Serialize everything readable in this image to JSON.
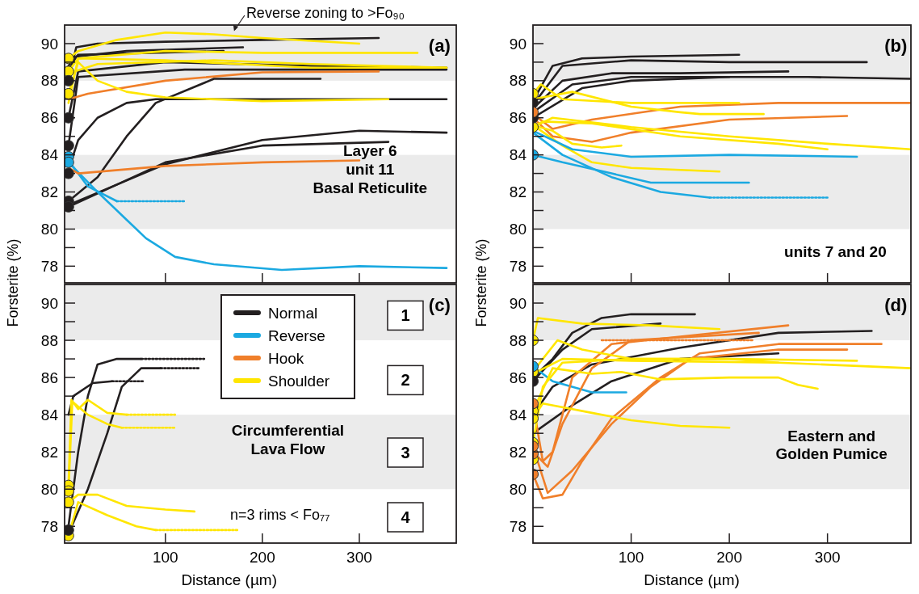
{
  "chart_data": [
    {
      "type": "line",
      "ylabel": "Forsterite (%)",
      "xlim": [
        -4,
        400
      ],
      "ylim": [
        77.1,
        91
      ],
      "xticks": [
        100,
        200,
        300
      ],
      "yticks": [
        78,
        {
          "value": 79,
          "label": null
        },
        80,
        {
          "value": 81,
          "label": null
        },
        82,
        {
          "value": 83,
          "label": null
        },
        84,
        {
          "value": 85,
          "label": null
        },
        86,
        {
          "value": 87,
          "label": null
        },
        88,
        {
          "value": 89,
          "label": null
        },
        90
      ],
      "tick_labels": "y",
      "bands": [
        {
          "axis": "y",
          "from": 88,
          "to": 91,
          "color": "#ebebeb"
        },
        {
          "axis": "y",
          "from": 80,
          "to": 84,
          "color": "#ebebeb"
        }
      ],
      "annotations": [
        "(a)",
        "Layer 6\nunit 11\nBasal Reticulite",
        {
          "text": "Reverse zoning to >Fo₉₀",
          "x": 170,
          "y": 90.5
        }
      ],
      "series": [
        {
          "color": "#231f20",
          "x": [
            0,
            8,
            30,
            100,
            200,
            320
          ],
          "values": [
            88,
            89.8,
            90,
            90.1,
            90.2,
            90.3
          ]
        },
        {
          "color": "#231f20",
          "x": [
            0,
            8,
            60,
            180
          ],
          "values": [
            88.5,
            89.3,
            89.6,
            89.8
          ]
        },
        {
          "color": "#231f20",
          "x": [
            0,
            10,
            160
          ],
          "values": [
            88.8,
            89.4,
            89.6
          ]
        },
        {
          "color": "#231f20",
          "x": [
            0,
            10,
            100,
            250,
            390
          ],
          "values": [
            86,
            88.5,
            89,
            88.8,
            88.7
          ]
        },
        {
          "color": "#231f20",
          "x": [
            0,
            10,
            120,
            390
          ],
          "values": [
            84.5,
            88.2,
            88.6,
            88.6
          ]
        },
        {
          "color": "#231f20",
          "x": [
            0,
            30,
            60,
            90,
            150,
            260
          ],
          "values": [
            81.5,
            82.8,
            85,
            86.8,
            88.1,
            88.1
          ]
        },
        {
          "color": "#231f20",
          "x": [
            0,
            10,
            30,
            60,
            90,
            390
          ],
          "values": [
            83.2,
            84.8,
            86,
            86.8,
            87,
            87
          ]
        },
        {
          "color": "#231f20",
          "x": [
            0,
            100,
            200,
            300,
            390
          ],
          "values": [
            81.3,
            83.5,
            84.8,
            85.3,
            85.2
          ]
        },
        {
          "color": "#231f20",
          "x": [
            0,
            100,
            200,
            330
          ],
          "values": [
            81.2,
            83.6,
            84.5,
            84.7
          ]
        },
        {
          "color": "#1ba9e1",
          "x": [
            0,
            20,
            50
          ],
          "values": [
            83.7,
            82.3,
            81.5
          ]
        },
        {
          "color": "#1ba9e1",
          "line_style": "dotted",
          "x": [
            50,
            120
          ],
          "values": [
            81.5,
            81.5
          ]
        },
        {
          "color": "#1ba9e1",
          "x": [
            0,
            30,
            60,
            80,
            110,
            150,
            220,
            300,
            390
          ],
          "values": [
            83.6,
            82,
            80.5,
            79.5,
            78.5,
            78.1,
            77.8,
            78,
            77.9
          ]
        },
        {
          "color": "#f07f2a",
          "x": [
            0,
            20,
            100,
            200,
            320
          ],
          "values": [
            87,
            87.3,
            88,
            88.45,
            88.5
          ]
        },
        {
          "color": "#f07f2a",
          "x": [
            0,
            10,
            100,
            200,
            300
          ],
          "values": [
            83.3,
            83,
            83.4,
            83.6,
            83.7
          ]
        },
        {
          "color": "#ffe600",
          "x": [
            0,
            10,
            50,
            100,
            150,
            200,
            300
          ],
          "values": [
            89.2,
            89.6,
            90.2,
            90.6,
            90.5,
            90.3,
            90
          ]
        },
        {
          "color": "#ffe600",
          "x": [
            0,
            10,
            100,
            200,
            360
          ],
          "values": [
            88.5,
            89.2,
            89.6,
            89.5,
            89.5
          ]
        },
        {
          "color": "#ffe600",
          "x": [
            0,
            30,
            150,
            250,
            390
          ],
          "values": [
            88.4,
            88.9,
            89.1,
            88.9,
            88.7
          ]
        },
        {
          "color": "#ffe600",
          "x": [
            0,
            10,
            30,
            60,
            100,
            200,
            330
          ],
          "values": [
            87.3,
            89,
            88,
            87.4,
            87.1,
            86.9,
            87
          ]
        },
        {
          "color": "#ffe600",
          "x": [
            0,
            10,
            100,
            250,
            390
          ],
          "values": [
            86.8,
            89.2,
            89.1,
            88.7,
            88.7
          ]
        },
        {
          "type": "scatter",
          "marker": "circle",
          "x": [
            0,
            0,
            0,
            0,
            0,
            0,
            0,
            0,
            0,
            0,
            0
          ],
          "values": [
            89.2,
            88.5,
            87.3,
            88,
            86,
            84.5,
            83,
            81.5,
            81.2,
            83.9,
            83.6
          ],
          "colors": [
            "#ffe600",
            "#ffe600",
            "#ffe600",
            "#231f20",
            "#231f20",
            "#231f20",
            "#231f20",
            "#231f20",
            "#231f20",
            "#1ba9e1",
            "#1ba9e1"
          ]
        }
      ]
    },
    {
      "type": "line",
      "ylabel": "Forsterite (%)",
      "xlim": [
        0,
        385
      ],
      "ylim": [
        77.1,
        91
      ],
      "xticks": [
        100,
        200,
        300
      ],
      "yticks": [
        78,
        {
          "value": 79,
          "label": null
        },
        80,
        {
          "value": 81,
          "label": null
        },
        82,
        {
          "value": 83,
          "label": null
        },
        84,
        {
          "value": 85,
          "label": null
        },
        86,
        {
          "value": 87,
          "label": null
        },
        88,
        {
          "value": 89,
          "label": null
        },
        90
      ],
      "tick_labels": "y",
      "bands": [
        {
          "axis": "y",
          "from": 88,
          "to": 91,
          "color": "#ebebeb"
        },
        {
          "axis": "y",
          "from": 80,
          "to": 84,
          "color": "#ebebeb"
        }
      ],
      "annotations": [
        "(b)",
        "units 7 and 20"
      ],
      "series": [
        {
          "color": "#231f20",
          "x": [
            0,
            20,
            50,
            100,
            210
          ],
          "values": [
            86.9,
            88.8,
            89.2,
            89.3,
            89.4
          ]
        },
        {
          "color": "#231f20",
          "x": [
            0,
            30,
            100,
            200,
            340
          ],
          "values": [
            86.7,
            88.8,
            89.1,
            89,
            89
          ]
        },
        {
          "color": "#231f20",
          "x": [
            0,
            30,
            80,
            150,
            260
          ],
          "values": [
            86.5,
            88,
            88.4,
            88.4,
            88.5
          ]
        },
        {
          "color": "#231f20",
          "x": [
            0,
            40,
            100,
            280,
            385
          ],
          "values": [
            86.3,
            87.8,
            88.2,
            88.2,
            88.1
          ]
        },
        {
          "color": "#231f20",
          "x": [
            0,
            50,
            100,
            200
          ],
          "values": [
            86,
            87.6,
            88,
            88.2
          ]
        },
        {
          "color": "#f07f2a",
          "x": [
            0,
            20,
            60,
            150,
            250,
            385
          ],
          "values": [
            86.2,
            85.4,
            85.9,
            86.6,
            86.8,
            86.8
          ]
        },
        {
          "color": "#f07f2a",
          "x": [
            0,
            20,
            60,
            100,
            200,
            320
          ],
          "values": [
            86,
            85,
            84.7,
            85.2,
            85.9,
            86.1
          ]
        },
        {
          "color": "#ffe600",
          "x": [
            0,
            8,
            30,
            100,
            210
          ],
          "values": [
            87.3,
            87.8,
            87,
            86.8,
            86.8
          ]
        },
        {
          "color": "#ffe600",
          "x": [
            0,
            40,
            100,
            150,
            170,
            235
          ],
          "values": [
            87,
            87.4,
            86.6,
            86.3,
            86.2,
            86.2
          ]
        },
        {
          "color": "#ffe600",
          "x": [
            0,
            20,
            100,
            200,
            300,
            385
          ],
          "values": [
            85.5,
            86,
            85.5,
            85,
            84.6,
            84.3
          ]
        },
        {
          "color": "#ffe600",
          "x": [
            0,
            10,
            60,
            150,
            250,
            300
          ],
          "values": [
            85.5,
            85.8,
            85.7,
            85,
            84.6,
            84.3
          ]
        },
        {
          "color": "#ffe600",
          "x": [
            0,
            20,
            40,
            70,
            90
          ],
          "values": [
            85.6,
            85.3,
            84.6,
            84.4,
            84.5
          ]
        },
        {
          "color": "#ffe600",
          "x": [
            0,
            30,
            60,
            100,
            190
          ],
          "values": [
            85.6,
            84.5,
            83.6,
            83.3,
            83.1
          ]
        },
        {
          "color": "#1ba9e1",
          "x": [
            0,
            30,
            80,
            120,
            220
          ],
          "values": [
            84,
            83.6,
            83,
            82.5,
            82.5
          ]
        },
        {
          "color": "#1ba9e1",
          "x": [
            0,
            40,
            100,
            200,
            330
          ],
          "values": [
            85.3,
            84.3,
            83.9,
            84,
            83.9
          ]
        },
        {
          "color": "#1ba9e1",
          "x": [
            0,
            30,
            80,
            130,
            180
          ],
          "values": [
            85.2,
            84,
            82.8,
            82,
            81.7
          ]
        },
        {
          "color": "#1ba9e1",
          "line_style": "dotted",
          "x": [
            180,
            300
          ],
          "values": [
            81.7,
            81.7
          ]
        },
        {
          "type": "scatter",
          "marker": "circle",
          "x": [
            0,
            0,
            0,
            0,
            0,
            0
          ],
          "values": [
            87.3,
            85.5,
            86.8,
            86,
            86.3,
            84
          ],
          "colors": [
            "#ffe600",
            "#ffe600",
            "#231f20",
            "#231f20",
            "#f07f2a",
            "#1ba9e1"
          ]
        }
      ]
    },
    {
      "type": "line",
      "xlabel": "Distance (µm)",
      "xlim": [
        -4,
        400
      ],
      "ylim": [
        77.1,
        91
      ],
      "xticks": [
        100,
        200,
        300
      ],
      "yticks": [
        78,
        {
          "value": 79,
          "label": null
        },
        80,
        {
          "value": 81,
          "label": null
        },
        82,
        {
          "value": 83,
          "label": null
        },
        84,
        {
          "value": 85,
          "label": null
        },
        86,
        {
          "value": 87,
          "label": null
        },
        88,
        {
          "value": 89,
          "label": null
        },
        90
      ],
      "legend": "top",
      "bands": [
        {
          "axis": "y",
          "from": 88,
          "to": 91,
          "color": "#ebebeb"
        },
        {
          "axis": "y",
          "from": 80,
          "to": 84,
          "color": "#ebebeb"
        }
      ],
      "annotations": [
        "(c)",
        "1",
        "2",
        "3",
        "4",
        "Circumferential\nLava Flow",
        "n=3 rims < Fo₇₇"
      ],
      "series": [
        {
          "name": "Normal",
          "color": "#231f20",
          "x": [
            0,
            10,
            20,
            30,
            50,
            75
          ],
          "values": [
            78,
            82,
            85,
            86.7,
            87,
            87
          ]
        },
        {
          "color": "#231f20",
          "line_style": "dotted",
          "x": [
            75,
            140
          ],
          "values": [
            87,
            87
          ]
        },
        {
          "color": "#231f20",
          "x": [
            0,
            20,
            40,
            55,
            75,
            95
          ],
          "values": [
            77.6,
            80,
            83,
            85.5,
            86.5,
            86.5
          ]
        },
        {
          "color": "#231f20",
          "line_style": "dotted",
          "x": [
            95,
            135
          ],
          "values": [
            86.5,
            86.5
          ]
        },
        {
          "color": "#231f20",
          "x": [
            0,
            5,
            25,
            45
          ],
          "values": [
            84,
            85,
            85.7,
            85.8
          ]
        },
        {
          "color": "#231f20",
          "line_style": "dotted",
          "x": [
            45,
            77
          ],
          "values": [
            85.8,
            85.8
          ]
        },
        {
          "name": "Reverse",
          "color": "#1ba9e1"
        },
        {
          "name": "Hook",
          "color": "#f07f2a"
        },
        {
          "name": "Shoulder",
          "color": "#ffe600",
          "x": [
            0,
            3,
            10,
            20,
            40,
            60
          ],
          "values": [
            80.2,
            84.8,
            84.3,
            84.8,
            84.1,
            84
          ]
        },
        {
          "color": "#ffe600",
          "line_style": "dotted",
          "x": [
            60,
            110
          ],
          "values": [
            84,
            84
          ]
        },
        {
          "color": "#ffe600",
          "x": [
            0,
            4,
            20,
            40,
            55
          ],
          "values": [
            79.9,
            84.7,
            84,
            83.5,
            83.3
          ]
        },
        {
          "color": "#ffe600",
          "line_style": "dotted",
          "x": [
            55,
            110
          ],
          "values": [
            83.3,
            83.3
          ]
        },
        {
          "color": "#ffe600",
          "x": [
            0,
            10,
            30,
            60,
            100,
            130
          ],
          "values": [
            79.3,
            79.7,
            79.7,
            79.1,
            78.9,
            78.8
          ]
        },
        {
          "color": "#ffe600",
          "x": [
            0,
            10,
            40,
            70,
            90
          ],
          "values": [
            77.5,
            79.3,
            78.6,
            78,
            77.8
          ]
        },
        {
          "color": "#ffe600",
          "line_style": "dotted",
          "x": [
            90,
            175
          ],
          "values": [
            77.8,
            77.8
          ]
        },
        {
          "type": "scatter",
          "marker": "circle",
          "x": [
            0,
            0,
            0,
            0,
            0
          ],
          "values": [
            80.2,
            79.9,
            79.3,
            77.5,
            77.8
          ],
          "colors": [
            "#ffe600",
            "#ffe600",
            "#ffe600",
            "#ffe600",
            "#231f20"
          ]
        }
      ]
    },
    {
      "type": "line",
      "xlabel": "Distance (µm)",
      "xlim": [
        0,
        385
      ],
      "ylim": [
        77.1,
        91
      ],
      "xticks": [
        100,
        200,
        300
      ],
      "yticks": [
        78,
        {
          "value": 79,
          "label": null
        },
        80,
        {
          "value": 81,
          "label": null
        },
        82,
        {
          "value": 83,
          "label": null
        },
        84,
        {
          "value": 85,
          "label": null
        },
        86,
        {
          "value": 87,
          "label": null
        },
        88,
        {
          "value": 89,
          "label": null
        },
        90
      ],
      "bands": [
        {
          "axis": "y",
          "from": 88,
          "to": 91,
          "color": "#ebebeb"
        },
        {
          "axis": "y",
          "from": 80,
          "to": 84,
          "color": "#ebebeb"
        }
      ],
      "annotations": [
        "(d)",
        "Eastern and\nGolden Pumice"
      ],
      "series": [
        {
          "color": "#231f20",
          "x": [
            0,
            20,
            40,
            70,
            100,
            165
          ],
          "values": [
            86,
            87,
            88.4,
            89.2,
            89.4,
            89.4
          ]
        },
        {
          "color": "#231f20",
          "x": [
            0,
            30,
            60,
            130
          ],
          "values": [
            85.8,
            87.5,
            88.6,
            88.9
          ]
        },
        {
          "color": "#231f20",
          "x": [
            0,
            20,
            60,
            150,
            250,
            345
          ],
          "values": [
            84,
            85.5,
            86.7,
            87.6,
            88.4,
            88.5
          ]
        },
        {
          "color": "#231f20",
          "x": [
            0,
            40,
            80,
            150,
            250
          ],
          "values": [
            83,
            84.5,
            85.8,
            87,
            87.3
          ]
        },
        {
          "color": "#1ba9e1",
          "x": [
            0,
            20,
            60,
            95
          ],
          "values": [
            86.6,
            85.8,
            85.2,
            85.2
          ]
        },
        {
          "color": "#f07f2a",
          "x": [
            0,
            10,
            20,
            40,
            80,
            150,
            260
          ],
          "values": [
            84.6,
            81.5,
            82,
            86,
            87.8,
            88.2,
            88.8
          ]
        },
        {
          "color": "#f07f2a",
          "x": [
            0,
            15,
            30,
            60,
            100,
            230
          ],
          "values": [
            82,
            81.2,
            83.5,
            86.5,
            88,
            88.4
          ]
        },
        {
          "color": "#f07f2a",
          "line_style": "dotted",
          "x": [
            70,
            225
          ],
          "values": [
            88,
            88
          ]
        },
        {
          "color": "#f07f2a",
          "x": [
            0,
            15,
            40,
            80,
            120,
            160,
            250,
            320
          ],
          "values": [
            82.3,
            79.8,
            81,
            83.5,
            85.5,
            87,
            87.5,
            87.5
          ]
        },
        {
          "color": "#f07f2a",
          "x": [
            0,
            10,
            30,
            50,
            80,
            130,
            170,
            250,
            355
          ],
          "values": [
            80.8,
            79.5,
            79.7,
            81.5,
            83.8,
            86,
            87.3,
            87.8,
            87.8
          ]
        },
        {
          "color": "#ffe600",
          "x": [
            0,
            5,
            50,
            120,
            190
          ],
          "values": [
            88,
            89.2,
            88.9,
            88.8,
            88.6
          ]
        },
        {
          "color": "#ffe600",
          "x": [
            0,
            10,
            25,
            50,
            100,
            200,
            330
          ],
          "values": [
            86.3,
            87,
            88,
            87.5,
            87,
            87,
            86.9
          ]
        },
        {
          "color": "#ffe600",
          "x": [
            0,
            30,
            100,
            250,
            385
          ],
          "values": [
            86.2,
            87,
            86.9,
            86.8,
            86.5
          ]
        },
        {
          "color": "#ffe600",
          "x": [
            0,
            20,
            60,
            90,
            130,
            200,
            250,
            270,
            290
          ],
          "values": [
            84.2,
            86.5,
            86.2,
            86.3,
            85.9,
            86,
            86,
            85.6,
            85.4
          ]
        },
        {
          "color": "#ffe600",
          "x": [
            0,
            10,
            60,
            100,
            150,
            200
          ],
          "values": [
            83.8,
            84.6,
            84.1,
            83.7,
            83.4,
            83.3
          ]
        },
        {
          "color": "#ffe600",
          "x": [
            0,
            10,
            30,
            100,
            200,
            250
          ],
          "values": [
            82.5,
            85.5,
            86.8,
            87,
            87,
            86.8
          ]
        },
        {
          "type": "scatter",
          "marker": "circle",
          "x": [
            0,
            0,
            0,
            0,
            0,
            0,
            0,
            0,
            0,
            0,
            0,
            0
          ],
          "values": [
            88,
            86.3,
            84.2,
            83.8,
            82.5,
            81.6,
            84.6,
            81.9,
            80.8,
            82.3,
            86.6,
            85.8
          ],
          "colors": [
            "#ffe600",
            "#ffe600",
            "#ffe600",
            "#ffe600",
            "#ffe600",
            "#ffe600",
            "#f07f2a",
            "#f07f2a",
            "#f07f2a",
            "#f07f2a",
            "#1ba9e1",
            "#231f20"
          ]
        }
      ]
    }
  ]
}
